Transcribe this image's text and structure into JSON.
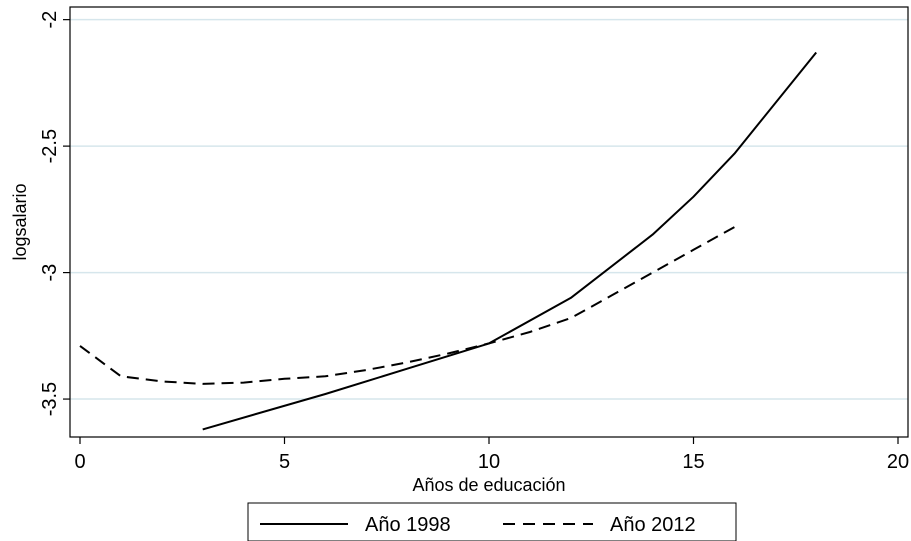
{
  "chart_data": {
    "type": "line",
    "xlabel": "Años de educación",
    "ylabel": "logsalario",
    "xlim": [
      0,
      20
    ],
    "ylim": [
      -3.65,
      -1.95
    ],
    "xticks": [
      0,
      5,
      10,
      15,
      20
    ],
    "yticks": [
      -2,
      -2.5,
      -3,
      -3.5
    ],
    "ytick_labels": [
      "-2",
      "-2.5",
      "-3",
      "-3.5"
    ],
    "grid": "horizontal",
    "legend_position": "bottom",
    "series": [
      {
        "name": "Año 1998",
        "style": "solid",
        "color": "#000000",
        "points": [
          [
            3,
            -3.62
          ],
          [
            6,
            -3.48
          ],
          [
            8,
            -3.38
          ],
          [
            10,
            -3.28
          ],
          [
            12,
            -3.1
          ],
          [
            14,
            -2.85
          ],
          [
            15,
            -2.7
          ],
          [
            16,
            -2.53
          ],
          [
            18,
            -2.13
          ]
        ]
      },
      {
        "name": "Año 2012",
        "style": "dashed",
        "color": "#000000",
        "points": [
          [
            0,
            -3.29
          ],
          [
            1,
            -3.41
          ],
          [
            2,
            -3.43
          ],
          [
            3,
            -3.44
          ],
          [
            4,
            -3.435
          ],
          [
            5,
            -3.42
          ],
          [
            6,
            -3.41
          ],
          [
            7,
            -3.385
          ],
          [
            8,
            -3.355
          ],
          [
            9,
            -3.32
          ],
          [
            10,
            -3.28
          ],
          [
            11,
            -3.235
          ],
          [
            12,
            -3.18
          ],
          [
            13,
            -3.09
          ],
          [
            14,
            -3.0
          ],
          [
            15,
            -2.91
          ],
          [
            16,
            -2.82
          ]
        ]
      }
    ]
  }
}
